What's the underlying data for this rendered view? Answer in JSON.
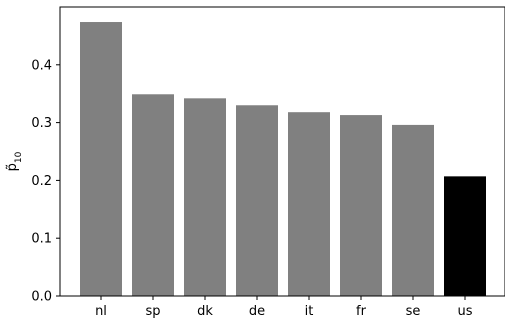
{
  "chart_data": {
    "type": "bar",
    "categories": [
      "nl",
      "sp",
      "dk",
      "de",
      "it",
      "fr",
      "se",
      "us"
    ],
    "values": [
      0.474,
      0.349,
      0.342,
      0.33,
      0.318,
      0.313,
      0.296,
      0.207
    ],
    "bar_colors": [
      "#808080",
      "#808080",
      "#808080",
      "#808080",
      "#808080",
      "#808080",
      "#808080",
      "#000000"
    ],
    "ylabel_base": "p̃",
    "ylabel_sub": "10",
    "ylim": [
      0,
      0.5
    ],
    "yticks": [
      0.0,
      0.1,
      0.2,
      0.3,
      0.4
    ],
    "ytick_labels": [
      "0.0",
      "0.1",
      "0.2",
      "0.3",
      "0.4"
    ],
    "grid": false
  }
}
